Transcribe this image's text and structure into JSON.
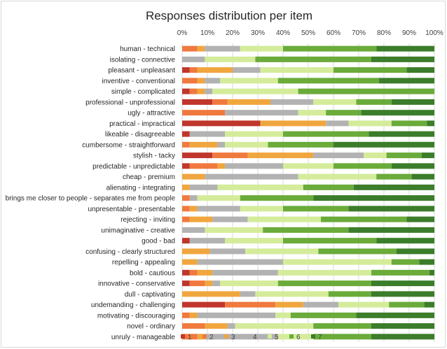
{
  "chart_data": {
    "type": "bar",
    "orientation": "horizontal",
    "stacked": "percent",
    "title": "Responses distribution per item",
    "xlim": [
      0,
      100
    ],
    "x_ticks": [
      "0%",
      "10%",
      "20%",
      "30%",
      "40%",
      "50%",
      "60%",
      "70%",
      "80%",
      "90%",
      "100%"
    ],
    "grid": true,
    "legend_position": "bottom",
    "colors": [
      "#c0362c",
      "#f0793e",
      "#f0a63e",
      "#b2b2b2",
      "#d4ec9a",
      "#6aab3a",
      "#3b7d2a"
    ],
    "categories": [
      "human - technical",
      "isolating - connective",
      "pleasant - unpleasant",
      "inventive - conventional",
      "simple - complicated",
      "professional - unprofessional",
      "ugly - attractive",
      "practical - impractical",
      "likeable - disagreeable",
      "cumbersome - straightforward",
      "stylish - tacky",
      "predictable - unpredictable",
      "cheap - premium",
      "alienating - integrating",
      "brings me closer to people - separates me from people",
      "unpresentable - presentable",
      "rejecting - inviting",
      "unimaginative - creative",
      "good - bad",
      "confusing - clearly structured",
      "repelling - appealing",
      "bold - cautious",
      "innovative - conservative",
      "dull - captivating",
      "undemanding - challenging",
      "motivating - discouraging",
      "novel - ordinary",
      "unruly - manageable"
    ],
    "series": [
      {
        "name": "1",
        "values": [
          0,
          0,
          3,
          0,
          3,
          12,
          0,
          31,
          3,
          0,
          12,
          3,
          0,
          0,
          0,
          0,
          0,
          0,
          3,
          0,
          0,
          3,
          3,
          0,
          17,
          0,
          0,
          0
        ]
      },
      {
        "name": "2",
        "values": [
          6,
          0,
          3,
          6,
          3,
          6,
          17,
          0,
          0,
          3,
          14,
          11,
          0,
          0,
          3,
          3,
          3,
          0,
          0,
          0,
          0,
          3,
          6,
          0,
          20,
          3,
          9,
          6
        ]
      },
      {
        "name": "3",
        "values": [
          3,
          0,
          14,
          3,
          3,
          17,
          0,
          26,
          0,
          11,
          26,
          3,
          9,
          3,
          0,
          3,
          9,
          0,
          0,
          11,
          6,
          6,
          3,
          23,
          11,
          3,
          9,
          3
        ]
      },
      {
        "name": "4",
        "values": [
          14,
          9,
          11,
          6,
          3,
          17,
          29,
          9,
          14,
          3,
          20,
          23,
          37,
          11,
          3,
          17,
          14,
          9,
          14,
          14,
          34,
          26,
          3,
          6,
          14,
          31,
          3,
          29
        ]
      },
      {
        "name": "5",
        "values": [
          17,
          20,
          29,
          23,
          34,
          17,
          11,
          17,
          23,
          17,
          9,
          20,
          31,
          34,
          17,
          17,
          29,
          23,
          23,
          29,
          43,
          37,
          23,
          29,
          20,
          6,
          31,
          14
        ]
      },
      {
        "name": "6",
        "values": [
          37,
          46,
          29,
          40,
          54,
          14,
          14,
          14,
          34,
          26,
          14,
          23,
          14,
          20,
          29,
          26,
          34,
          34,
          37,
          31,
          11,
          23,
          37,
          17,
          14,
          26,
          23,
          23
        ]
      },
      {
        "name": "7",
        "values": [
          23,
          25,
          11,
          22,
          0,
          17,
          29,
          3,
          26,
          40,
          5,
          17,
          9,
          32,
          48,
          34,
          11,
          34,
          23,
          15,
          6,
          2,
          25,
          25,
          4,
          31,
          25,
          25
        ]
      }
    ]
  }
}
